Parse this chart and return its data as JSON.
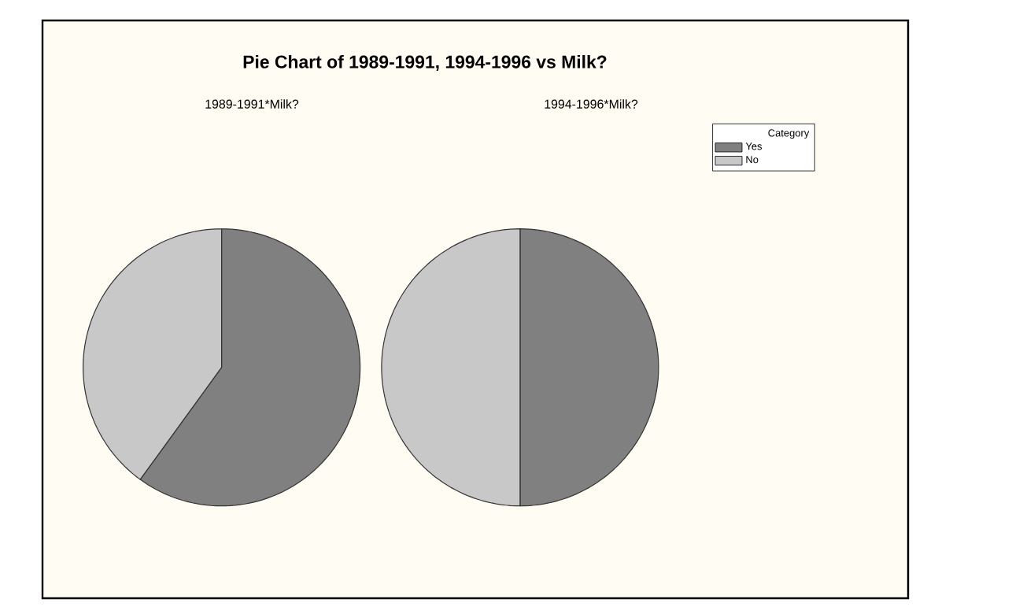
{
  "chart_data": [
    {
      "type": "pie",
      "title": "Pie Chart of 1989-1991, 1994-1996 vs Milk?",
      "subtitle": "1989-1991*Milk?",
      "categories": [
        null,
        null
      ],
      "values": [
        60,
        40
      ],
      "colors": [
        "#808080",
        "#c8c8c8"
      ]
    },
    {
      "type": "pie",
      "subtitle": "1994-1996*Milk?",
      "categories": [
        "Yes",
        "No"
      ],
      "values": [
        50,
        50
      ],
      "colors": [
        "#808080",
        "#c8c8c8"
      ],
      "legend_title": "Category",
      "legend": "right"
    }
  ]
}
